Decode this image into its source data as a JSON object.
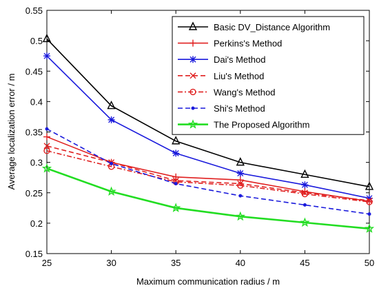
{
  "chart_data": {
    "type": "line",
    "title": "",
    "xlabel": "Maximum communication radius / m",
    "ylabel": "Average localization error / m",
    "x": [
      25,
      30,
      35,
      40,
      45,
      50
    ],
    "xlim": [
      25,
      50
    ],
    "ylim": [
      0.15,
      0.55
    ],
    "xticks": [
      "25",
      "30",
      "35",
      "40",
      "45",
      "50"
    ],
    "yticks": [
      "0.15",
      "0.2",
      "0.25",
      "0.3",
      "0.35",
      "0.4",
      "0.45",
      "0.5",
      "0.55"
    ],
    "grid": false,
    "legend_position": "top-right",
    "series": [
      {
        "name": "Basic DV_Distance Algorithm",
        "values": [
          0.503,
          0.393,
          0.335,
          0.3,
          0.28,
          0.26
        ],
        "color": "#000000",
        "marker": "triangle",
        "dash": "solid"
      },
      {
        "name": "Perkins's Method",
        "values": [
          0.342,
          0.3,
          0.276,
          0.271,
          0.252,
          0.236
        ],
        "color": "#e02020",
        "marker": "plus",
        "dash": "solid"
      },
      {
        "name": "Dai's Method",
        "values": [
          0.475,
          0.37,
          0.315,
          0.282,
          0.263,
          0.241
        ],
        "color": "#1a1adc",
        "marker": "asterisk",
        "dash": "solid"
      },
      {
        "name": "Liu's Method",
        "values": [
          0.327,
          0.3,
          0.27,
          0.265,
          0.25,
          0.237
        ],
        "color": "#e02020",
        "marker": "x",
        "dash": "dashed"
      },
      {
        "name": "Wang's Method",
        "values": [
          0.319,
          0.293,
          0.268,
          0.262,
          0.248,
          0.235
        ],
        "color": "#e02020",
        "marker": "circle",
        "dash": "dashdot"
      },
      {
        "name": "Shi's Method",
        "values": [
          0.355,
          0.298,
          0.265,
          0.245,
          0.23,
          0.215
        ],
        "color": "#1a1adc",
        "marker": "point",
        "dash": "dashed"
      },
      {
        "name": "The Proposed Algorithm",
        "values": [
          0.29,
          0.252,
          0.225,
          0.211,
          0.201,
          0.191
        ],
        "color": "#22dd22",
        "marker": "star",
        "dash": "solid"
      }
    ]
  }
}
